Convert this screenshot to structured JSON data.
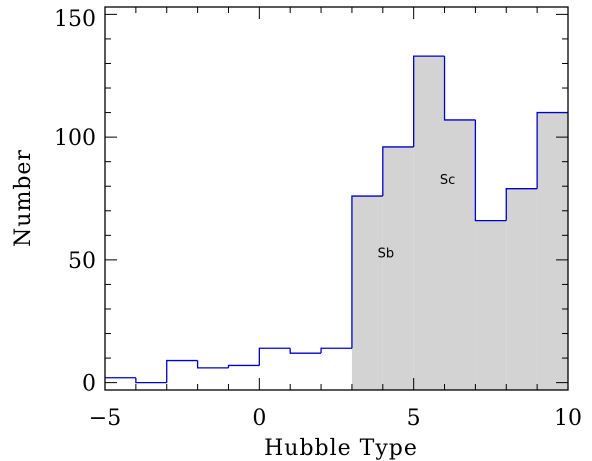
{
  "chart_data": {
    "type": "bar",
    "style": "step-histogram",
    "xlabel": "Hubble Type",
    "ylabel": "Number",
    "xlim": [
      -5,
      10
    ],
    "ylim": [
      -3,
      153
    ],
    "xticks": [
      -5,
      0,
      5,
      10
    ],
    "xtick_labels": [
      "−5",
      "0",
      "5",
      "10"
    ],
    "yticks": [
      0,
      50,
      100,
      150
    ],
    "ytick_labels": [
      "0",
      "50",
      "100",
      "150"
    ],
    "bin_edges": [
      -5,
      -4,
      -3,
      -2,
      -1,
      0,
      1,
      2,
      3,
      4,
      5,
      6,
      7,
      8,
      9,
      10
    ],
    "values": [
      2,
      0,
      9,
      6,
      7,
      14,
      12,
      14,
      76,
      96,
      133,
      107,
      66,
      79,
      110
    ],
    "shade_from_x": 3,
    "grid": false,
    "line_color": "#0000cc",
    "fill_color": "#d3d3d3",
    "annotations": [
      {
        "text": "Sb",
        "x": 4.1,
        "y": 51
      },
      {
        "text": "Sc",
        "x": 6.1,
        "y": 81
      }
    ]
  }
}
